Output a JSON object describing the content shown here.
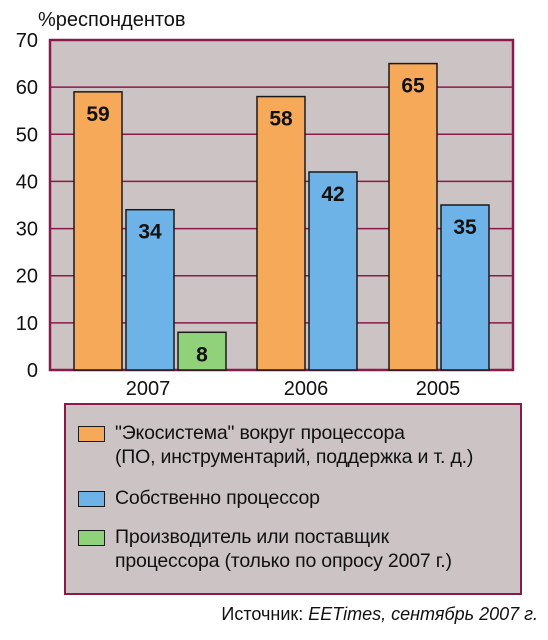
{
  "chart_data": {
    "type": "bar",
    "ylabel": "%респондентов",
    "ylim": [
      0,
      70
    ],
    "yticks": [
      0,
      10,
      20,
      30,
      40,
      50,
      60,
      70
    ],
    "grid": true,
    "categories": [
      "2007",
      "2006",
      "2005"
    ],
    "series": [
      {
        "name": "\"Экосистема\" вокруг процессора\n(ПО, инструментарий, поддержка и т. д.)",
        "color": "#f7a95a",
        "values": [
          59,
          58,
          65
        ]
      },
      {
        "name": "Собственно процессор",
        "color": "#6db3e8",
        "values": [
          34,
          42,
          35
        ]
      },
      {
        "name": "Производитель или поставщик\nпроцессора (только по опросу 2007 г.)",
        "color": "#8fd27a",
        "values": [
          8,
          null,
          null
        ]
      }
    ],
    "legend_position": "bottom",
    "plot_background": "#ccc4c4",
    "frame_color": "#8a1a4a"
  },
  "source": {
    "prefix": "Источник: ",
    "publication": "EETimes",
    "date": ", сентябрь 2007 г."
  }
}
